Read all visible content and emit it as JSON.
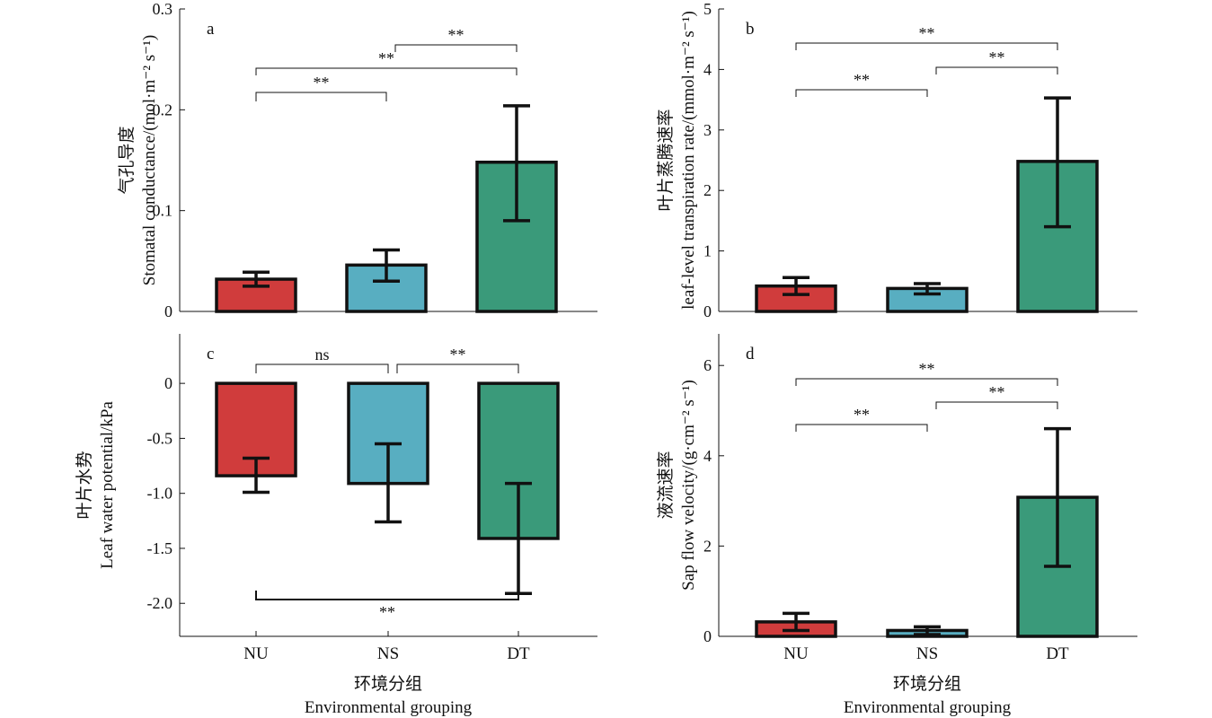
{
  "colors": {
    "NU": "#d03c3c",
    "NS": "#58aec1",
    "DT": "#3a9a7a"
  },
  "chart_data": [
    {
      "type": "bar",
      "panel_label": "a",
      "categories": [
        "NU",
        "NS",
        "DT"
      ],
      "values": [
        0.032,
        0.046,
        0.148
      ],
      "error_low": [
        0.025,
        0.03,
        0.09
      ],
      "error_high": [
        0.039,
        0.061,
        0.204
      ],
      "ylabel_cn": "气孔导度",
      "ylabel_en": "Stomatal conductance/(mol·m⁻² s⁻¹)",
      "ylim": [
        0,
        0.3
      ],
      "yticks": [
        0,
        0.1,
        0.2,
        0.3
      ],
      "ytick_labels": [
        "0",
        "0.1",
        "0.2",
        "0.3"
      ],
      "significance": [
        {
          "from": "NU",
          "to": "NS",
          "label": "**"
        },
        {
          "from": "NU",
          "to": "DT",
          "label": "**"
        },
        {
          "from": "NS",
          "to": "DT",
          "label": "**"
        }
      ]
    },
    {
      "type": "bar",
      "panel_label": "b",
      "categories": [
        "NU",
        "NS",
        "DT"
      ],
      "values": [
        0.42,
        0.38,
        2.48
      ],
      "error_low": [
        0.28,
        0.29,
        1.4
      ],
      "error_high": [
        0.56,
        0.46,
        3.53
      ],
      "ylabel_cn": "叶片蒸腾速率",
      "ylabel_en": "leaf-level transpiration rate/(mmol·m⁻² s⁻¹)",
      "ylim": [
        0,
        5
      ],
      "yticks": [
        0,
        1,
        2,
        3,
        4,
        5
      ],
      "ytick_labels": [
        "0",
        "1",
        "2",
        "3",
        "4",
        "5"
      ],
      "significance": [
        {
          "from": "NU",
          "to": "NS",
          "label": "**"
        },
        {
          "from": "NS",
          "to": "DT",
          "label": "**"
        },
        {
          "from": "NU",
          "to": "DT",
          "label": "**"
        }
      ]
    },
    {
      "type": "bar",
      "panel_label": "c",
      "categories": [
        "NU",
        "NS",
        "DT"
      ],
      "values": [
        -0.84,
        -0.91,
        -1.41
      ],
      "error_low": [
        -0.99,
        -1.26,
        -1.91
      ],
      "error_high": [
        -0.68,
        -0.55,
        -0.91
      ],
      "ylabel_cn": "叶片水势",
      "ylabel_en": "Leaf water potential/kPa",
      "ylim": [
        -2.3,
        0.45
      ],
      "yticks": [
        0,
        -0.5,
        -1.0,
        -1.5,
        -2.0
      ],
      "ytick_labels": [
        "0",
        "-0.5",
        "-1.0",
        "-1.5",
        "-2.0"
      ],
      "significance": [
        {
          "from": "NU",
          "to": "NS",
          "label": "ns"
        },
        {
          "from": "NS",
          "to": "DT",
          "label": "**"
        },
        {
          "from": "NU",
          "to": "DT",
          "label": "**"
        }
      ]
    },
    {
      "type": "bar",
      "panel_label": "d",
      "categories": [
        "NU",
        "NS",
        "DT"
      ],
      "values": [
        0.32,
        0.13,
        3.08
      ],
      "error_low": [
        0.13,
        0.04,
        1.55
      ],
      "error_high": [
        0.51,
        0.21,
        4.6
      ],
      "ylabel_cn": "液流速率",
      "ylabel_en": "Sap flow velocity/(g·cm⁻² s⁻¹)",
      "ylim": [
        0,
        6.7
      ],
      "yticks": [
        0,
        2,
        4,
        6
      ],
      "ytick_labels": [
        "0",
        "2",
        "4",
        "6"
      ],
      "significance": [
        {
          "from": "NU",
          "to": "NS",
          "label": "**"
        },
        {
          "from": "NS",
          "to": "DT",
          "label": "**"
        },
        {
          "from": "NU",
          "to": "DT",
          "label": "**"
        }
      ]
    }
  ],
  "xlabel_cn": "环境分组",
  "xlabel_en": "Environmental grouping"
}
